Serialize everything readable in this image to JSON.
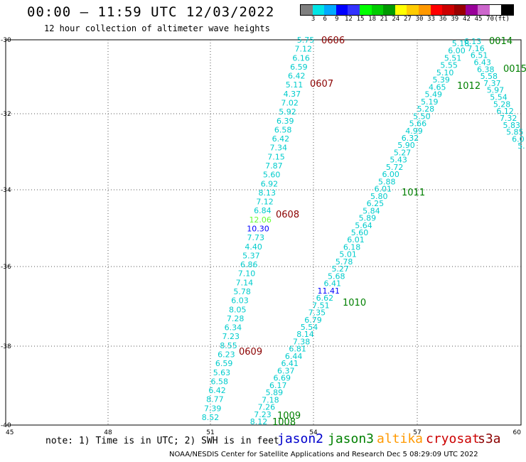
{
  "title": "00:00 – 11:59 UTC 12/03/2022",
  "subtitle": "12 hour collection of altimeter wave heights",
  "colorbar": {
    "colors": [
      "#7f7f7f",
      "#00e5e5",
      "#00aaff",
      "#0000ff",
      "#3333ff",
      "#00ff00",
      "#00cc00",
      "#009900",
      "#ffff00",
      "#ffcc00",
      "#ff9900",
      "#ff0000",
      "#cc0000",
      "#990000",
      "#990099",
      "#cc66cc",
      "#ffffff",
      "#000000"
    ],
    "labels": [
      "3",
      "6",
      "9",
      "12",
      "15",
      "18",
      "21",
      "24",
      "27",
      "30",
      "33",
      "36",
      "39",
      "42",
      "45",
      "70",
      "(ft)"
    ]
  },
  "axes": {
    "lat_ticks": [
      "-30",
      "-32",
      "-34",
      "-36",
      "-38",
      "-40"
    ],
    "lon_ticks": [
      "45",
      "48",
      "51",
      "54",
      "57",
      "60"
    ]
  },
  "tracks": {
    "track_a": [
      "5.75",
      "7.12",
      "6.16",
      "6.59",
      "6.42",
      "5.11",
      "4.37",
      "7.02",
      "5.92",
      "6.39",
      "6.58",
      "6.42",
      "7.34",
      "7.15",
      "7.87",
      "5.60",
      "6.92",
      "8.13",
      "7.12",
      "6.84",
      "12.06",
      "10.30",
      "7.73",
      "4.40",
      "5.37",
      "6.86",
      "7.10",
      "7.14",
      "5.78",
      "6.03",
      "8.05",
      "7.28",
      "6.34",
      "7.23",
      "8.55",
      "6.23",
      "6.59",
      "5.63",
      "6.58",
      "6.42",
      "8.77",
      "7.39",
      "8.52"
    ],
    "track_b": [
      "5.18",
      "6.00",
      "5.51",
      "5.55",
      "5.10",
      "5.39",
      "4.65",
      "5.49",
      "5.19",
      "5.28",
      "5.50",
      "5.66",
      "4.99",
      "6.32",
      "5.90",
      "5.27",
      "5.43",
      "5.72",
      "6.00",
      "5.88",
      "6.01",
      "5.80",
      "6.25",
      "5.84",
      "5.89",
      "5.64",
      "5.60",
      "6.01",
      "6.18",
      "5.01",
      "5.78",
      "5.27",
      "5.68",
      "6.41",
      "11.41",
      "6.62",
      "7.51",
      "7.35",
      "6.79",
      "5.54",
      "8.14",
      "7.38",
      "6.81",
      "6.44",
      "6.41",
      "6.37",
      "6.69",
      "6.17",
      "5.89",
      "7.18",
      "7.26",
      "7.23",
      "8.12"
    ],
    "track_c": [
      "6.13",
      "7.16",
      "6.51",
      "6.43",
      "6.38",
      "5.58",
      "7.37",
      "5.97",
      "5.54",
      "5.28",
      "6.12",
      "7.32",
      "5.83",
      "5.85",
      "6.0",
      "5.",
      "5"
    ]
  },
  "time_labels": [
    {
      "text": "0606",
      "color": "#8b0000"
    },
    {
      "text": "0607",
      "color": "#8b0000"
    },
    {
      "text": "0608",
      "color": "#8b0000"
    },
    {
      "text": "0609",
      "color": "#8b0000"
    },
    {
      "text": "0014",
      "color": "#008000"
    },
    {
      "text": "0015",
      "color": "#008000"
    },
    {
      "text": "1012",
      "color": "#008000"
    },
    {
      "text": "1011",
      "color": "#008000"
    },
    {
      "text": "1010",
      "color": "#008000"
    },
    {
      "text": "1009",
      "color": "#008000"
    },
    {
      "text": "1008",
      "color": "#008000"
    }
  ],
  "note": "note: 1) Time is in UTC; 2) SWH is in feet",
  "legend": [
    {
      "text": "jason2",
      "color": "#0000cc"
    },
    {
      "text": "jason3",
      "color": "#008000"
    },
    {
      "text": "altika",
      "color": "#ff9900"
    },
    {
      "text": "cryosat",
      "color": "#cc0000"
    },
    {
      "text": "s3a",
      "color": "#8b0000"
    }
  ],
  "footer": "NOAA/NESDIS Center for Satellite Applications and Research    Dec  5 08:29:09 UTC 2022"
}
